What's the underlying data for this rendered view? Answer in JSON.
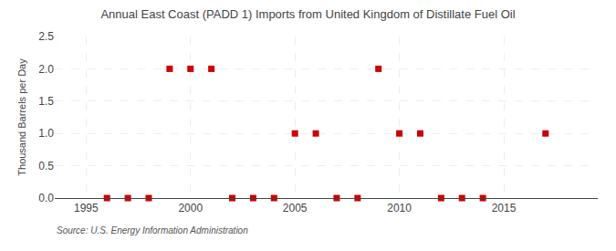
{
  "chart_data": {
    "type": "scatter",
    "title": "Annual East Coast (PADD 1) Imports from United Kingdom of Distillate Fuel Oil",
    "ylabel": "Thousand Barrels per Day",
    "annotations": [
      "Source: U.S. Energy Information Administration"
    ],
    "x": [
      1996,
      1997,
      1998,
      1999,
      2000,
      2001,
      2002,
      2003,
      2004,
      2005,
      2006,
      2007,
      2008,
      2009,
      2010,
      2011,
      2012,
      2013,
      2014,
      2017
    ],
    "values": [
      0.0,
      0.0,
      0.0,
      2.0,
      2.0,
      2.0,
      0.0,
      0.0,
      0.0,
      1.0,
      1.0,
      0.0,
      0.0,
      2.0,
      1.0,
      1.0,
      0.0,
      0.0,
      0.0,
      1.0
    ],
    "color": "#cc0000",
    "marker": "square",
    "xlim": [
      1993.5,
      2019.5
    ],
    "ylim": [
      0,
      2.5
    ],
    "xticks": [
      1995,
      2000,
      2005,
      2010,
      2015
    ],
    "yticks": [
      {
        "value": 0.0,
        "label": "0.0"
      },
      0.5,
      {
        "value": 1.0,
        "label": "1.0"
      },
      1.5,
      {
        "value": 2.0,
        "label": "2.0"
      },
      2.5
    ],
    "grid": true
  }
}
